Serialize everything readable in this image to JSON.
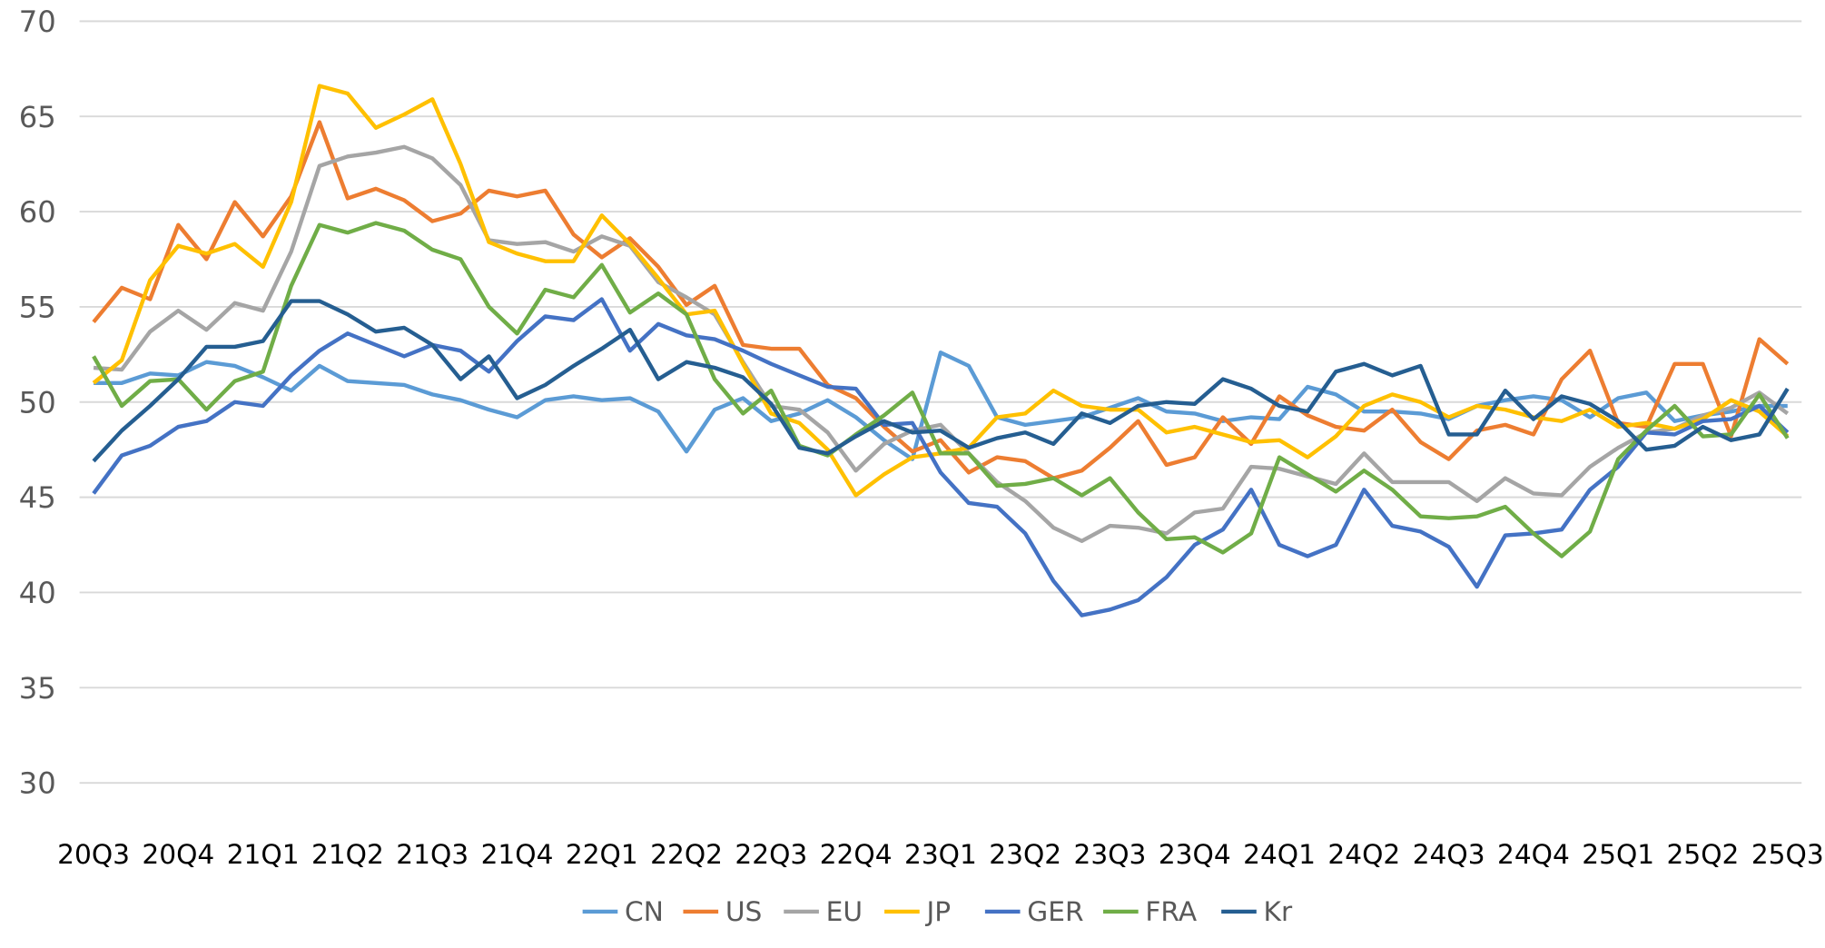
{
  "chart_data": {
    "type": "line",
    "title": "",
    "xlabel": "",
    "ylabel": "",
    "ylim": [
      30,
      70
    ],
    "yticks": [
      30,
      35,
      40,
      45,
      50,
      55,
      60,
      65,
      70
    ],
    "grid": true,
    "legend_position": "bottom",
    "x_tick_labels": [
      "20Q3",
      "20Q4",
      "21Q1",
      "21Q2",
      "21Q3",
      "21Q4",
      "22Q1",
      "22Q2",
      "22Q3",
      "22Q4",
      "23Q1",
      "23Q2",
      "23Q3",
      "23Q4",
      "24Q1",
      "24Q2",
      "24Q3",
      "24Q4",
      "25Q1",
      "25Q2",
      "25Q3"
    ],
    "points_per_tick": 3,
    "series": [
      {
        "name": "CN",
        "color": "#5B9BD5",
        "values": [
          51.0,
          51.0,
          51.5,
          51.4,
          52.1,
          51.9,
          51.3,
          50.6,
          51.9,
          51.1,
          51.0,
          50.9,
          50.4,
          50.1,
          49.6,
          49.2,
          50.1,
          50.3,
          50.1,
          50.2,
          49.5,
          47.4,
          49.6,
          50.2,
          49.0,
          49.4,
          50.1,
          49.2,
          48.0,
          47.0,
          52.6,
          51.9,
          49.2,
          48.8,
          49.0,
          49.2,
          49.7,
          50.2,
          49.5,
          49.4,
          49.0,
          49.2,
          49.1,
          50.8,
          50.4,
          49.5,
          49.5,
          49.4,
          49.1,
          49.8,
          50.1,
          50.3,
          50.1,
          49.2,
          50.2,
          50.5,
          49.0,
          49.3,
          49.5,
          49.8,
          49.8
        ]
      },
      {
        "name": "US",
        "color": "#ED7D31",
        "values": [
          54.2,
          56.0,
          55.4,
          59.3,
          57.5,
          60.5,
          58.7,
          60.8,
          64.7,
          60.7,
          61.2,
          60.6,
          59.5,
          59.9,
          61.1,
          60.8,
          61.1,
          58.8,
          57.6,
          58.6,
          57.1,
          55.1,
          56.1,
          53.0,
          52.8,
          52.8,
          50.9,
          50.2,
          48.7,
          47.4,
          48.0,
          46.3,
          47.1,
          46.9,
          46.0,
          46.4,
          47.6,
          49.0,
          46.7,
          47.1,
          49.2,
          47.8,
          50.3,
          49.3,
          48.7,
          48.5,
          49.6,
          47.9,
          47.0,
          48.5,
          48.8,
          48.3,
          51.2,
          52.7,
          48.9,
          48.7,
          52.0,
          52.0,
          48.2,
          53.3,
          52.0
        ]
      },
      {
        "name": "EU",
        "color": "#A5A5A5",
        "values": [
          51.8,
          51.7,
          53.7,
          54.8,
          53.8,
          55.2,
          54.8,
          57.9,
          62.4,
          62.9,
          63.1,
          63.4,
          62.8,
          61.4,
          58.5,
          58.3,
          58.4,
          57.9,
          58.7,
          58.2,
          56.3,
          55.5,
          54.6,
          52.1,
          49.8,
          49.6,
          48.4,
          46.4,
          47.8,
          48.5,
          48.8,
          47.3,
          45.8,
          44.8,
          43.4,
          42.7,
          43.5,
          43.4,
          43.1,
          44.2,
          44.4,
          46.6,
          46.5,
          46.1,
          45.7,
          47.3,
          45.8,
          45.8,
          45.8,
          44.8,
          46.0,
          45.2,
          45.1,
          46.6,
          47.6,
          48.4,
          48.6,
          49.3,
          49.7,
          50.5,
          49.4
        ]
      },
      {
        "name": "JP",
        "color": "#FFC000",
        "values": [
          51.0,
          52.2,
          56.4,
          58.2,
          57.8,
          58.3,
          57.1,
          60.5,
          66.6,
          66.2,
          64.4,
          65.1,
          65.9,
          62.5,
          58.4,
          57.8,
          57.4,
          57.4,
          59.8,
          58.3,
          56.5,
          54.6,
          54.8,
          52.0,
          49.4,
          48.9,
          47.5,
          45.1,
          46.2,
          47.1,
          47.3,
          47.6,
          49.2,
          49.4,
          50.6,
          49.8,
          49.6,
          49.6,
          48.4,
          48.7,
          48.3,
          47.9,
          48.0,
          47.1,
          48.2,
          49.8,
          50.4,
          50.0,
          49.2,
          49.8,
          49.6,
          49.2,
          49.0,
          49.6,
          48.7,
          48.9,
          48.6,
          49.1,
          50.1,
          49.5,
          48.2
        ]
      },
      {
        "name": "GER",
        "color": "#4472C4",
        "values": [
          45.2,
          47.2,
          47.7,
          48.7,
          49.0,
          50.0,
          49.8,
          51.4,
          52.7,
          53.6,
          53.0,
          52.4,
          53.0,
          52.7,
          51.6,
          53.2,
          54.5,
          54.3,
          55.4,
          52.7,
          54.1,
          53.5,
          53.3,
          52.7,
          52.0,
          51.4,
          50.8,
          50.7,
          48.8,
          48.9,
          46.3,
          44.7,
          44.5,
          43.1,
          40.6,
          38.8,
          39.1,
          39.6,
          40.8,
          42.5,
          43.3,
          45.4,
          42.5,
          41.9,
          42.5,
          45.4,
          43.5,
          43.2,
          42.4,
          40.3,
          43.0,
          43.1,
          43.3,
          45.4,
          46.6,
          48.4,
          48.3,
          49.0,
          49.1,
          49.8,
          48.4
        ]
      },
      {
        "name": "FRA",
        "color": "#70AD47",
        "values": [
          52.4,
          49.8,
          51.1,
          51.2,
          49.6,
          51.1,
          51.6,
          56.1,
          59.3,
          58.9,
          59.4,
          59.0,
          58.0,
          57.5,
          55.0,
          53.6,
          55.9,
          55.5,
          57.2,
          54.7,
          55.7,
          54.6,
          51.2,
          49.4,
          50.6,
          47.7,
          47.2,
          48.3,
          49.3,
          50.5,
          47.3,
          47.3,
          45.6,
          45.7,
          46.0,
          45.1,
          46.0,
          44.2,
          42.8,
          42.9,
          42.1,
          43.1,
          47.1,
          46.2,
          45.3,
          46.4,
          45.4,
          44.0,
          43.9,
          44.0,
          44.5,
          43.1,
          41.9,
          43.2,
          47.0,
          48.5,
          49.8,
          48.2,
          48.3,
          50.4,
          48.1
        ]
      },
      {
        "name": "Kr",
        "color": "#255E91",
        "values": [
          46.9,
          48.5,
          49.8,
          51.2,
          52.9,
          52.9,
          53.2,
          55.3,
          55.3,
          54.6,
          53.7,
          53.9,
          53.0,
          51.2,
          52.4,
          50.2,
          50.9,
          51.9,
          52.8,
          53.8,
          51.2,
          52.1,
          51.8,
          51.3,
          49.9,
          47.6,
          47.3,
          48.2,
          49.0,
          48.4,
          48.5,
          47.6,
          48.1,
          48.4,
          47.8,
          49.4,
          48.9,
          49.8,
          50.0,
          49.9,
          51.2,
          50.7,
          49.8,
          49.5,
          51.6,
          52.0,
          51.4,
          51.9,
          48.3,
          48.3,
          50.6,
          49.1,
          50.3,
          49.9,
          49.0,
          47.5,
          47.7,
          48.7,
          48.0,
          48.3,
          50.7
        ]
      }
    ]
  }
}
